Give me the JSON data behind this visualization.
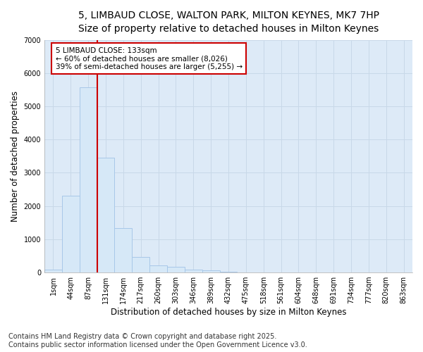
{
  "title_line1": "5, LIMBAUD CLOSE, WALTON PARK, MILTON KEYNES, MK7 7HP",
  "title_line2": "Size of property relative to detached houses in Milton Keynes",
  "xlabel": "Distribution of detached houses by size in Milton Keynes",
  "ylabel": "Number of detached properties",
  "categories": [
    "1sqm",
    "44sqm",
    "87sqm",
    "131sqm",
    "174sqm",
    "217sqm",
    "260sqm",
    "303sqm",
    "346sqm",
    "389sqm",
    "432sqm",
    "475sqm",
    "518sqm",
    "561sqm",
    "604sqm",
    "648sqm",
    "691sqm",
    "734sqm",
    "777sqm",
    "820sqm",
    "863sqm"
  ],
  "values": [
    80,
    2300,
    5580,
    3450,
    1340,
    470,
    205,
    175,
    85,
    55,
    25,
    0,
    0,
    0,
    0,
    0,
    0,
    0,
    0,
    0,
    0
  ],
  "bar_color": "#d6e8f7",
  "bar_edge_color": "#a8c8e8",
  "vline_color": "#cc0000",
  "vline_pos": 2.5,
  "annotation_text": "5 LIMBAUD CLOSE: 133sqm\n← 60% of detached houses are smaller (8,026)\n39% of semi-detached houses are larger (5,255) →",
  "annotation_box_color": "#cc0000",
  "ylim": [
    0,
    7000
  ],
  "yticks": [
    0,
    1000,
    2000,
    3000,
    4000,
    5000,
    6000,
    7000
  ],
  "grid_color": "#c8d8e8",
  "bg_color": "#ddeaf7",
  "footnote": "Contains HM Land Registry data © Crown copyright and database right 2025.\nContains public sector information licensed under the Open Government Licence v3.0.",
  "footnote_fontsize": 7,
  "title1_fontsize": 10,
  "title2_fontsize": 9,
  "label_fontsize": 8.5,
  "tick_fontsize": 7,
  "annot_fontsize": 7.5
}
